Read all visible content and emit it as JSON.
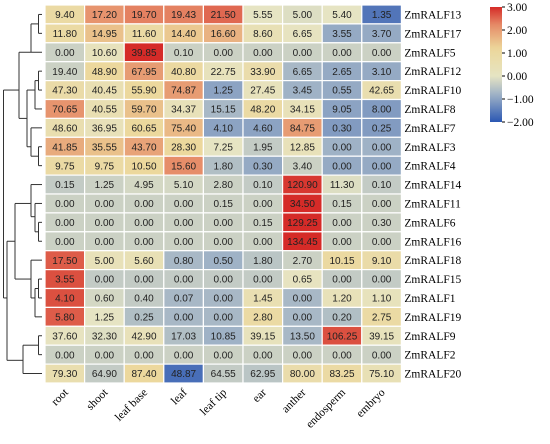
{
  "chart_data": {
    "type": "heatmap",
    "title": "",
    "xlabel": "",
    "ylabel": "",
    "columns": [
      "root",
      "shoot",
      "leaf base",
      "leaf",
      "leaf tip",
      "ear",
      "anther",
      "endosperm",
      "embryo"
    ],
    "rows": [
      {
        "name": "ZmRALF13",
        "values": [
          "9.40",
          "17.20",
          "19.70",
          "19.43",
          "21.50",
          "5.55",
          "5.00",
          "5.40",
          "1.35"
        ],
        "z": [
          0.9,
          2.1,
          2.3,
          2.3,
          2.5,
          0.0,
          -0.1,
          0.0,
          -1.6
        ]
      },
      {
        "name": "ZmRALF17",
        "values": [
          "11.80",
          "14.95",
          "11.60",
          "14.40",
          "16.60",
          "8.60",
          "6.65",
          "3.55",
          "3.70"
        ],
        "z": [
          0.9,
          1.5,
          0.9,
          1.4,
          1.7,
          0.4,
          0.1,
          -0.9,
          -0.9
        ]
      },
      {
        "name": "ZmRALF5",
        "values": [
          "0.00",
          "10.60",
          "39.85",
          "0.10",
          "0.00",
          "0.00",
          "0.00",
          "0.00",
          "0.00"
        ],
        "z": [
          -0.3,
          0.2,
          3.0,
          -0.3,
          -0.3,
          -0.3,
          -0.3,
          -0.3,
          -0.3
        ]
      },
      {
        "name": "ZmRALF12",
        "values": [
          "19.40",
          "48.90",
          "67.95",
          "40.80",
          "22.75",
          "33.90",
          "6.65",
          "2.65",
          "3.10"
        ],
        "z": [
          -0.3,
          1.1,
          2.0,
          1.0,
          0.2,
          0.7,
          -0.7,
          -0.9,
          -0.9
        ]
      },
      {
        "name": "ZmRALF10",
        "values": [
          "47.30",
          "40.45",
          "55.90",
          "74.87",
          "1.25",
          "27.45",
          "3.45",
          "0.55",
          "42.65"
        ],
        "z": [
          0.8,
          0.5,
          1.1,
          2.0,
          -1.0,
          0.2,
          -0.8,
          -0.9,
          0.6
        ]
      },
      {
        "name": "ZmRALF8",
        "values": [
          "70.65",
          "40.55",
          "59.70",
          "34.37",
          "15.15",
          "48.20",
          "34.15",
          "9.05",
          "8.00"
        ],
        "z": [
          2.1,
          0.5,
          1.5,
          0.3,
          -0.7,
          0.9,
          0.3,
          -1.0,
          -1.1
        ]
      },
      {
        "name": "ZmRALF7",
        "values": [
          "48.60",
          "36.95",
          "60.65",
          "75.40",
          "4.10",
          "4.60",
          "84.75",
          "0.30",
          "0.25"
        ],
        "z": [
          0.6,
          0.3,
          1.1,
          1.6,
          -1.0,
          -1.0,
          2.0,
          -1.1,
          -1.1
        ]
      },
      {
        "name": "ZmRALF3",
        "values": [
          "41.85",
          "35.55",
          "43.70",
          "28.30",
          "7.25",
          "1.95",
          "12.85",
          "0.00",
          "0.00"
        ],
        "z": [
          1.8,
          1.5,
          1.9,
          1.1,
          0.0,
          -0.4,
          0.3,
          -0.8,
          -0.8
        ]
      },
      {
        "name": "ZmRALF4",
        "values": [
          "9.75",
          "9.75",
          "10.50",
          "15.60",
          "1.80",
          "0.30",
          "3.40",
          "0.00",
          "0.00"
        ],
        "z": [
          0.9,
          0.9,
          1.1,
          2.2,
          -0.6,
          -0.9,
          -0.3,
          -0.9,
          -0.9
        ]
      },
      {
        "name": "ZmRALF14",
        "values": [
          "0.15",
          "1.25",
          "4.95",
          "5.10",
          "2.80",
          "0.10",
          "120.90",
          "11.30",
          "0.10"
        ],
        "z": [
          -0.4,
          -0.3,
          -0.2,
          -0.2,
          -0.3,
          -0.4,
          2.9,
          -0.1,
          -0.4
        ]
      },
      {
        "name": "ZmRALF11",
        "values": [
          "0.00",
          "0.00",
          "0.00",
          "0.00",
          "0.15",
          "0.00",
          "34.50",
          "0.15",
          "0.00"
        ],
        "z": [
          -0.3,
          -0.3,
          -0.3,
          -0.3,
          -0.3,
          -0.3,
          3.0,
          -0.3,
          -0.3
        ]
      },
      {
        "name": "ZmRALF6",
        "values": [
          "0.00",
          "0.00",
          "0.00",
          "0.00",
          "0.00",
          "0.15",
          "129.25",
          "0.00",
          "0.30"
        ],
        "z": [
          -0.3,
          -0.3,
          -0.3,
          -0.3,
          -0.3,
          -0.3,
          3.0,
          -0.3,
          -0.3
        ]
      },
      {
        "name": "ZmRALF16",
        "values": [
          "0.00",
          "0.00",
          "0.00",
          "0.00",
          "0.00",
          "0.00",
          "134.45",
          "0.00",
          "0.00"
        ],
        "z": [
          -0.3,
          -0.3,
          -0.3,
          -0.3,
          -0.3,
          -0.3,
          3.0,
          -0.3,
          -0.3
        ]
      },
      {
        "name": "ZmRALF18",
        "values": [
          "17.50",
          "5.00",
          "5.60",
          "0.80",
          "0.50",
          "1.80",
          "2.70",
          "10.15",
          "9.10"
        ],
        "z": [
          2.6,
          0.3,
          0.4,
          -0.7,
          -0.8,
          -0.5,
          -0.3,
          1.0,
          0.8
        ]
      },
      {
        "name": "ZmRALF15",
        "values": [
          "3.55",
          "0.00",
          "0.00",
          "0.00",
          "0.00",
          "0.00",
          "0.65",
          "0.00",
          "0.00"
        ],
        "z": [
          2.7,
          -0.4,
          -0.4,
          -0.4,
          -0.4,
          -0.4,
          0.1,
          -0.4,
          -0.4
        ]
      },
      {
        "name": "ZmRALF1",
        "values": [
          "4.10",
          "0.60",
          "0.40",
          "0.07",
          "0.00",
          "1.45",
          "0.00",
          "1.20",
          "1.10"
        ],
        "z": [
          2.7,
          -0.2,
          -0.4,
          -0.7,
          -0.7,
          0.5,
          -0.7,
          0.3,
          0.2
        ]
      },
      {
        "name": "ZmRALF19",
        "values": [
          "5.80",
          "1.25",
          "0.25",
          "0.00",
          "0.00",
          "2.80",
          "0.00",
          "0.20",
          "2.75"
        ],
        "z": [
          2.6,
          0.0,
          -0.6,
          -0.7,
          -0.7,
          0.9,
          -0.7,
          -0.6,
          0.9
        ]
      },
      {
        "name": "ZmRALF9",
        "values": [
          "37.60",
          "32.30",
          "42.90",
          "17.03",
          "10.85",
          "39.15",
          "13.50",
          "106.25",
          "39.15"
        ],
        "z": [
          0.1,
          -0.1,
          0.3,
          -0.6,
          -0.8,
          0.2,
          -0.7,
          2.7,
          0.2
        ]
      },
      {
        "name": "ZmRALF2",
        "values": [
          "0.00",
          "0.00",
          "0.00",
          "0.00",
          "0.00",
          "0.00",
          "0.00",
          "0.00",
          "0.00"
        ],
        "z": [
          -0.3,
          -0.3,
          -0.3,
          -0.3,
          -0.3,
          -0.3,
          -0.3,
          -0.3,
          -0.3
        ]
      },
      {
        "name": "ZmRALF20",
        "values": [
          "79.30",
          "64.90",
          "87.40",
          "48.87",
          "64.55",
          "62.95",
          "80.00",
          "83.25",
          "75.10"
        ],
        "z": [
          0.6,
          -0.4,
          1.1,
          -1.7,
          -0.4,
          -0.5,
          0.7,
          0.9,
          0.4
        ]
      }
    ],
    "color_scale": {
      "min": -2.0,
      "max": 3.0,
      "stops": [
        {
          "value": -2.0,
          "color": "#2b57b3"
        },
        {
          "value": -0.8,
          "color": "#9fb2c6"
        },
        {
          "value": 0.0,
          "color": "#e6e4c3"
        },
        {
          "value": 1.2,
          "color": "#ecd79a"
        },
        {
          "value": 2.2,
          "color": "#e68d69"
        },
        {
          "value": 3.0,
          "color": "#d52b28"
        }
      ],
      "ticks": [
        "3.00",
        "2.00",
        "1.00",
        "0.00",
        "−1.00",
        "−2.00"
      ],
      "tick_values": [
        3,
        2,
        1,
        0,
        -1,
        -2
      ]
    },
    "dendrogram": true,
    "legend_position": "top-right"
  }
}
